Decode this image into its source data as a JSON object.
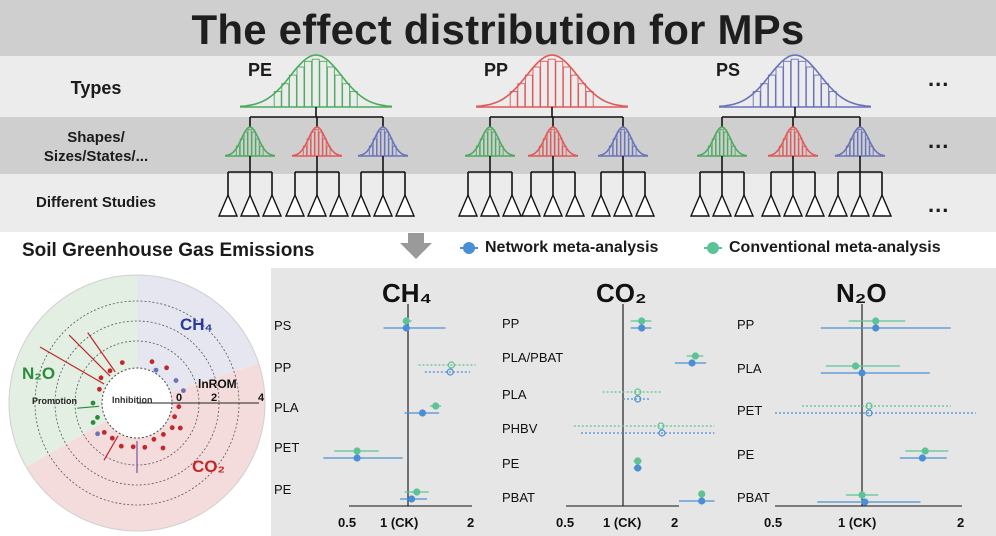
{
  "header": {
    "title": "The effect distribution for MPs",
    "rows": [
      "Types",
      "Shapes/\nSizes/States/...",
      "Different Studies"
    ],
    "types": [
      {
        "label": "PE",
        "color": "#4caa5e"
      },
      {
        "label": "PP",
        "color": "#e05858"
      },
      {
        "label": "PS",
        "color": "#6a72b8"
      }
    ],
    "more": "..."
  },
  "section": {
    "title": "Soil Greenhouse Gas Emissions",
    "legend": [
      {
        "label": "Network meta-analysis",
        "color": "#4a8fd4"
      },
      {
        "label": "Conventional meta-analysis",
        "color": "#5cc396"
      }
    ]
  },
  "circle": {
    "sectors": [
      "CH₄",
      "N₂O",
      "CO₂"
    ],
    "inner": "Inhibition",
    "promotion": "Promotion",
    "axis": "lnROM",
    "ticks": [
      "0",
      "2",
      "4"
    ]
  },
  "panels": [
    {
      "title": "CH₄",
      "studies": [
        {
          "label": "PS",
          "conv": [
            0.98,
            0.94,
            1.04
          ],
          "net": [
            0.98,
            0.75,
            1.5
          ]
        },
        {
          "label": "PP",
          "conv": [
            1.6,
            1.12,
            2.08
          ],
          "net": [
            1.58,
            1.2,
            1.96
          ]
        },
        {
          "label": "PLA",
          "conv": [
            1.35,
            1.27,
            1.43
          ],
          "net": [
            1.17,
            0.96,
            1.4
          ]
        },
        {
          "label": "PET",
          "conv": [
            0.55,
            0.42,
            0.71
          ],
          "net": [
            0.55,
            0.37,
            0.94
          ]
        },
        {
          "label": "PE",
          "conv": [
            1.1,
            0.96,
            1.25
          ],
          "net": [
            1.04,
            0.91,
            1.23
          ]
        }
      ],
      "ticks": [
        "0.5",
        "1 (CK)",
        "2"
      ]
    },
    {
      "title": "CO₂",
      "studies": [
        {
          "label": "PP",
          "conv": [
            1.26,
            1.1,
            1.42
          ],
          "net": [
            1.26,
            1.1,
            1.42
          ]
        },
        {
          "label": "PLA/PBAT",
          "conv": [
            2.45,
            2.2,
            2.7
          ],
          "net": [
            2.35,
            1.9,
            2.8
          ]
        },
        {
          "label": "PLA",
          "conv": [
            1.2,
            0.78,
            1.6
          ],
          "net": [
            1.2,
            1.0,
            1.4
          ]
        },
        {
          "label": "PHBV",
          "conv": [
            1.6,
            0.55,
            3.1
          ],
          "net": [
            1.62,
            0.6,
            3.1
          ]
        },
        {
          "label": "PE",
          "conv": [
            1.2,
            1.14,
            1.26
          ],
          "net": [
            1.2,
            1.14,
            1.26
          ]
        },
        {
          "label": "PBAT",
          "conv": [
            2.65,
            2.55,
            2.72
          ],
          "net": [
            2.65,
            2.0,
            3.1
          ]
        }
      ],
      "ticks": [
        "0.5",
        "1 (CK)",
        "2"
      ]
    },
    {
      "title": "N₂O",
      "studies": [
        {
          "label": "PP",
          "conv": [
            1.1,
            0.9,
            1.35
          ],
          "net": [
            1.1,
            0.72,
            1.85
          ]
        },
        {
          "label": "PLA",
          "conv": [
            0.95,
            0.75,
            1.3
          ],
          "net": [
            1.0,
            0.72,
            1.6
          ]
        },
        {
          "label": "PET",
          "conv": [
            1.05,
            0.62,
            1.85
          ],
          "net": [
            1.05,
            0.5,
            2.2
          ]
        },
        {
          "label": "PE",
          "conv": [
            1.55,
            1.35,
            1.82
          ],
          "net": [
            1.52,
            1.3,
            1.8
          ]
        },
        {
          "label": "PBAT",
          "conv": [
            1.0,
            0.88,
            1.12
          ],
          "net": [
            1.02,
            0.7,
            1.5
          ]
        }
      ],
      "ticks": [
        "0.5",
        "1 (CK)",
        "2"
      ]
    }
  ]
}
